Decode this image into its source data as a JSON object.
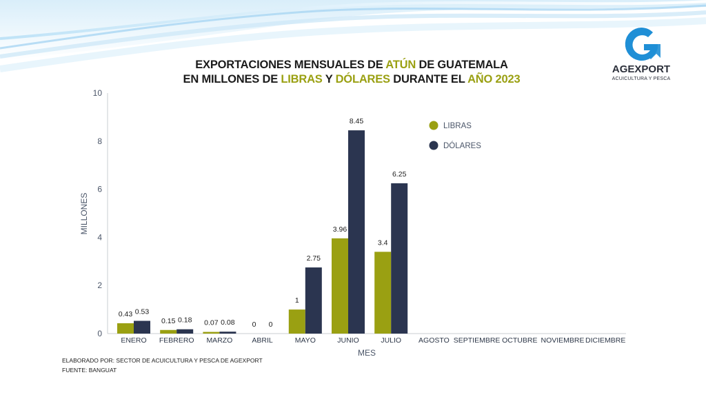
{
  "title": {
    "line1": [
      {
        "text": "EXPORTACIONES MENSUALES DE ",
        "highlight": false
      },
      {
        "text": "ATÚN",
        "highlight": true
      },
      {
        "text": " DE GUATEMALA",
        "highlight": false
      }
    ],
    "line2": [
      {
        "text": "EN MILLONES DE ",
        "highlight": false
      },
      {
        "text": "LIBRAS",
        "highlight": true
      },
      {
        "text": " Y ",
        "highlight": false
      },
      {
        "text": "DÓLARES",
        "highlight": true
      },
      {
        "text": " DURANTE EL ",
        "highlight": false
      },
      {
        "text": "AÑO 2023",
        "highlight": true
      }
    ]
  },
  "logo": {
    "name": "AGEXPORT",
    "subtitle": "ACUICULTURA Y PESCA",
    "color": "#1f8fd6",
    "icon": "agexport-g-arrow-icon"
  },
  "footer": {
    "line1": "ELABORADO POR: SECTOR DE ACUICULTURA Y PESCA DE AGEXPORT",
    "line2": "FUENTE:  BANGUAT"
  },
  "colors": {
    "libras": "#9aa012",
    "dolares": "#2b3550",
    "highlight": "#9aa012",
    "axis_text": "#4a5568"
  },
  "chart_data": {
    "type": "bar",
    "title": "EXPORTACIONES MENSUALES DE ATÚN DE GUATEMALA EN MILLONES DE LIBRAS Y DÓLARES DURANTE EL AÑO 2023",
    "xlabel": "MES",
    "ylabel": "MILLONES",
    "ylim": [
      0,
      10
    ],
    "yticks": [
      0,
      2,
      4,
      6,
      8,
      10
    ],
    "grid": false,
    "legend_position": "top-right",
    "categories": [
      "ENERO",
      "FEBRERO",
      "MARZO",
      "ABRIL",
      "MAYO",
      "JUNIO",
      "JULIO",
      "AGOSTO",
      "SEPTIEMBRE",
      "OCTUBRE",
      "NOVIEMBRE",
      "DICIEMBRE"
    ],
    "series": [
      {
        "name": "LIBRAS",
        "color": "#9aa012",
        "values": [
          0.43,
          0.15,
          0.07,
          0,
          1,
          3.96,
          3.4,
          null,
          null,
          null,
          null,
          null
        ],
        "labels": [
          "0.43",
          "0.15",
          "0.07",
          "0",
          "1",
          "3.96",
          "3.4",
          null,
          null,
          null,
          null,
          null
        ]
      },
      {
        "name": "DÓLARES",
        "color": "#2b3550",
        "values": [
          0.53,
          0.18,
          0.08,
          0,
          2.75,
          8.45,
          6.25,
          null,
          null,
          null,
          null,
          null
        ],
        "labels": [
          "0.53",
          "0.18",
          "0.08",
          "0",
          "2.75",
          "8.45",
          "6.25",
          null,
          null,
          null,
          null,
          null
        ]
      }
    ]
  }
}
